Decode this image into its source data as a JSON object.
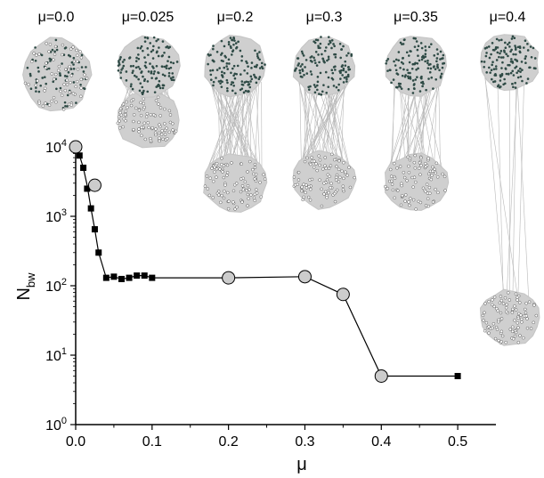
{
  "chart_data": {
    "type": "scatter",
    "title": "",
    "xlabel": "μ",
    "ylabel_base": "N",
    "ylabel_sub": "bw",
    "xlim": [
      0,
      0.55
    ],
    "ylim": [
      1,
      10000
    ],
    "y_scale": "log",
    "x_ticks": [
      0.0,
      0.1,
      0.2,
      0.3,
      0.4,
      0.5
    ],
    "x_tick_labels": [
      "0.0",
      "0.1",
      "0.2",
      "0.3",
      "0.4",
      "0.5"
    ],
    "y_ticks": [
      1,
      10,
      100,
      1000,
      10000
    ],
    "y_tick_bases": [
      "10",
      "10",
      "10",
      "10",
      "10"
    ],
    "y_tick_exps": [
      "0",
      "1",
      "2",
      "3",
      "4"
    ],
    "grid": false,
    "series": [
      {
        "marker": "filled-square",
        "color": "#000000",
        "x": [
          0.005,
          0.01,
          0.015,
          0.02,
          0.025,
          0.03,
          0.04,
          0.05,
          0.06,
          0.07,
          0.08,
          0.09,
          0.1,
          0.5
        ],
        "y": [
          7500,
          5000,
          2500,
          1300,
          650,
          300,
          130,
          135,
          125,
          130,
          140,
          140,
          130,
          5
        ]
      },
      {
        "marker": "open-circle",
        "color": "#cccccc",
        "x": [
          0.0,
          0.025,
          0.2,
          0.3,
          0.35,
          0.4
        ],
        "y": [
          10000,
          2800,
          130,
          135,
          75,
          5
        ]
      }
    ],
    "connecting_line": {
      "color": "#000000",
      "x": [
        0.0,
        0.005,
        0.01,
        0.015,
        0.02,
        0.025,
        0.03,
        0.04,
        0.05,
        0.06,
        0.07,
        0.08,
        0.09,
        0.1,
        0.2,
        0.3,
        0.35,
        0.4,
        0.5
      ],
      "y": [
        10000,
        7500,
        5000,
        2800,
        1300,
        650,
        300,
        130,
        135,
        125,
        130,
        140,
        140,
        130,
        130,
        135,
        75,
        5,
        5
      ]
    },
    "network_insets": [
      {
        "label": "μ=0.0",
        "mu": 0.0
      },
      {
        "label": "μ=0.025",
        "mu": 0.025
      },
      {
        "label": "μ=0.2",
        "mu": 0.2
      },
      {
        "label": "μ=0.3",
        "mu": 0.3
      },
      {
        "label": "μ=0.35",
        "mu": 0.35
      },
      {
        "label": "μ=0.4",
        "mu": 0.4
      }
    ],
    "colors": {
      "axis": "#000000",
      "network_fill": "#cfcfcf",
      "network_edges": "#b9b9b9",
      "dark_nodes": "#2e4a45",
      "light_nodes": "#ffffff"
    }
  }
}
